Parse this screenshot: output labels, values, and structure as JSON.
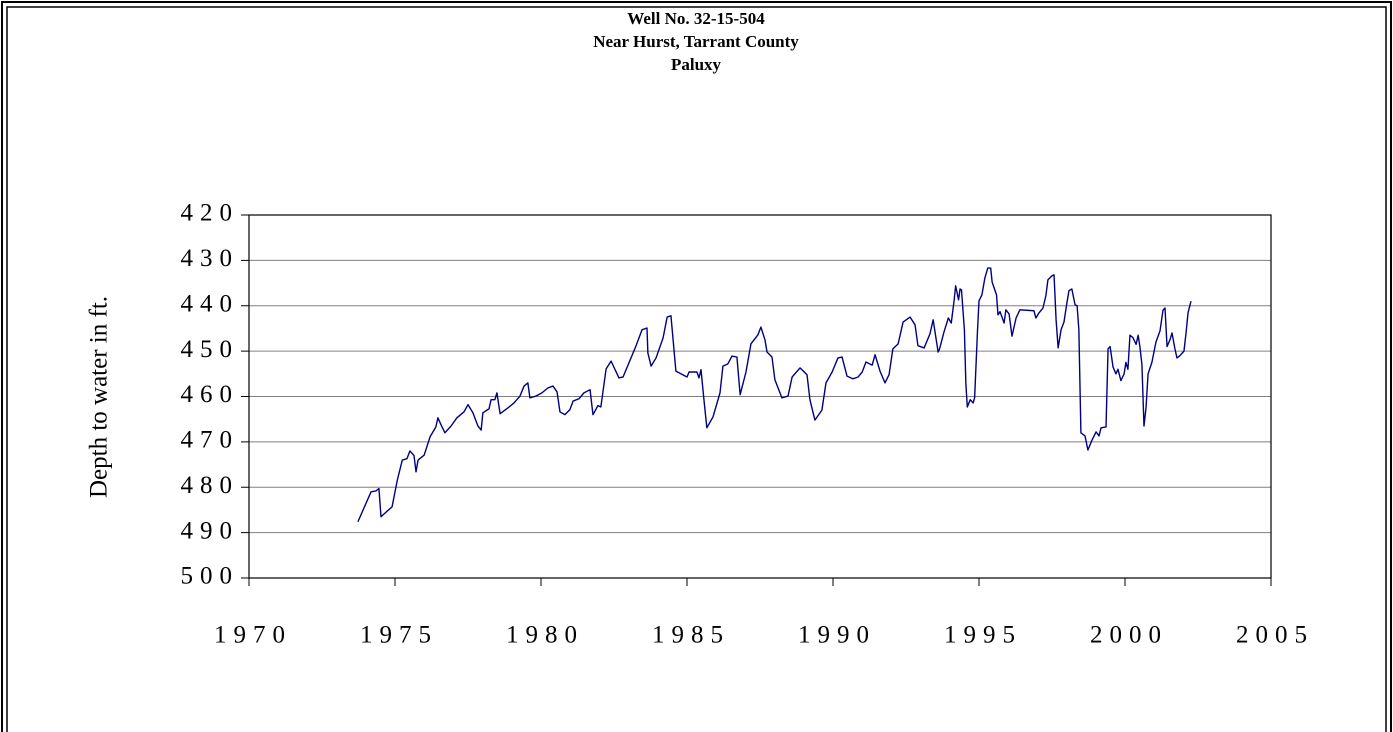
{
  "chart_data": {
    "type": "line",
    "title": [
      "Well No.  32-15-504",
      "Near Hurst, Tarrant County",
      "Paluxy"
    ],
    "ylabel": "Depth to water in ft.",
    "color": "#000080",
    "grid": true,
    "y_inverted": true,
    "xlim": [
      1970,
      2005
    ],
    "xticks": [
      1970,
      1975,
      1980,
      1985,
      1990,
      1995,
      2000,
      2005
    ],
    "ylim": [
      420,
      500
    ],
    "yticks": [
      420,
      430,
      440,
      450,
      460,
      470,
      480,
      490,
      500
    ],
    "x": [
      1973.73,
      1974.18,
      1974.35,
      1974.45,
      1974.52,
      1974.9,
      1975.08,
      1975.25,
      1975.41,
      1975.51,
      1975.65,
      1975.72,
      1975.79,
      1976.0,
      1976.2,
      1976.4,
      1976.47,
      1976.58,
      1976.71,
      1976.92,
      1977.12,
      1977.36,
      1977.5,
      1977.67,
      1977.84,
      1977.95,
      1978.01,
      1978.22,
      1978.29,
      1978.42,
      1978.49,
      1978.6,
      1978.87,
      1979.08,
      1979.28,
      1979.42,
      1979.55,
      1979.62,
      1979.83,
      1980.03,
      1980.24,
      1980.41,
      1980.55,
      1980.65,
      1980.82,
      1980.99,
      1981.1,
      1981.3,
      1981.47,
      1981.68,
      1981.78,
      1981.95,
      1982.05,
      1982.23,
      1982.4,
      1982.67,
      1982.81,
      1983.25,
      1983.46,
      1983.63,
      1983.66,
      1983.77,
      1983.94,
      1984.18,
      1984.32,
      1984.45,
      1984.62,
      1985.0,
      1985.07,
      1985.34,
      1985.41,
      1985.48,
      1985.58,
      1985.68,
      1985.89,
      1986.13,
      1986.23,
      1986.4,
      1986.54,
      1986.71,
      1986.82,
      1987.02,
      1987.19,
      1987.43,
      1987.53,
      1987.67,
      1987.74,
      1987.91,
      1988.01,
      1988.25,
      1988.46,
      1988.6,
      1988.87,
      1989.11,
      1989.21,
      1989.38,
      1989.62,
      1989.76,
      1989.97,
      1990.17,
      1990.31,
      1990.48,
      1990.68,
      1990.86,
      1991.0,
      1991.13,
      1991.34,
      1991.44,
      1991.61,
      1991.78,
      1991.92,
      1992.05,
      1992.23,
      1992.4,
      1992.64,
      1992.81,
      1992.91,
      1993.12,
      1993.32,
      1993.43,
      1993.6,
      1993.65,
      1993.8,
      1993.95,
      1994.05,
      1994.15,
      1994.2,
      1994.3,
      1994.35,
      1994.4,
      1994.5,
      1994.55,
      1994.6,
      1994.7,
      1994.8,
      1994.85,
      1994.95,
      1995.0,
      1995.1,
      1995.2,
      1995.3,
      1995.4,
      1995.45,
      1995.6,
      1995.65,
      1995.72,
      1995.86,
      1995.92,
      1996.03,
      1996.13,
      1996.27,
      1996.4,
      1996.88,
      1996.95,
      1997.05,
      1997.19,
      1997.29,
      1997.36,
      1997.5,
      1997.57,
      1997.64,
      1997.71,
      1997.81,
      1997.91,
      1998.01,
      1998.08,
      1998.18,
      1998.29,
      1998.36,
      1998.42,
      1998.49,
      1998.63,
      1998.73,
      1998.87,
      1999.01,
      1999.11,
      1999.18,
      1999.35,
      1999.42,
      1999.49,
      1999.59,
      1999.69,
      1999.76,
      1999.86,
      1999.97,
      2000.03,
      2000.1,
      2000.17,
      2000.27,
      2000.38,
      2000.45,
      2000.51,
      2000.58,
      2000.65,
      2000.72,
      2000.79,
      2000.92,
      2001.06,
      2001.2,
      2001.3,
      2001.37,
      2001.44,
      2001.54,
      2001.61,
      2001.71,
      2001.78,
      2001.88,
      2002.02,
      2002.09,
      2002.16,
      2002.26
    ],
    "values": [
      487.6,
      481.0,
      480.8,
      480.3,
      486.5,
      484.3,
      478.4,
      474.0,
      473.7,
      472.0,
      473.0,
      476.6,
      474.0,
      472.9,
      468.9,
      466.7,
      464.7,
      466.3,
      468.0,
      466.5,
      464.7,
      463.4,
      461.8,
      463.6,
      466.5,
      467.4,
      463.6,
      462.7,
      460.7,
      460.7,
      459.2,
      463.8,
      462.5,
      461.4,
      459.9,
      457.7,
      457.0,
      460.3,
      459.9,
      459.2,
      458.1,
      457.7,
      459.0,
      463.4,
      464.0,
      462.9,
      461.0,
      460.5,
      459.2,
      458.5,
      464.0,
      462.0,
      462.3,
      453.9,
      452.2,
      455.9,
      455.7,
      448.9,
      445.3,
      444.9,
      450.4,
      453.3,
      451.5,
      447.1,
      442.5,
      442.2,
      454.4,
      455.7,
      454.6,
      454.6,
      455.9,
      454.1,
      460.7,
      466.9,
      464.5,
      459.2,
      453.3,
      452.8,
      451.1,
      451.3,
      459.6,
      454.6,
      448.4,
      446.4,
      444.7,
      447.5,
      450.2,
      451.3,
      456.3,
      460.3,
      459.9,
      455.7,
      453.7,
      455.2,
      460.7,
      465.2,
      463.0,
      457.0,
      454.6,
      451.5,
      451.3,
      455.5,
      456.1,
      455.7,
      454.6,
      452.4,
      453.1,
      450.8,
      454.4,
      457.0,
      455.2,
      449.5,
      448.4,
      443.6,
      442.5,
      444.2,
      448.8,
      449.3,
      446.2,
      443.1,
      450.2,
      449.5,
      445.8,
      442.7,
      443.8,
      438.7,
      435.6,
      438.7,
      436.3,
      436.5,
      445.3,
      457.2,
      462.3,
      460.7,
      461.4,
      460.3,
      445.3,
      438.9,
      437.6,
      433.9,
      431.7,
      431.7,
      434.8,
      437.6,
      442.0,
      441.3,
      443.8,
      440.9,
      441.8,
      446.7,
      442.7,
      440.9,
      441.1,
      442.7,
      441.6,
      440.5,
      437.8,
      434.3,
      433.4,
      433.2,
      443.1,
      449.3,
      445.3,
      443.6,
      439.4,
      436.7,
      436.3,
      439.8,
      440.0,
      445.3,
      468.0,
      468.7,
      471.8,
      469.6,
      467.8,
      468.7,
      466.9,
      466.7,
      449.5,
      449.0,
      453.5,
      455.0,
      454.0,
      456.5,
      455.0,
      452.5,
      454.0,
      446.5,
      447.0,
      448.5,
      446.5,
      449.0,
      453.0,
      466.5,
      462.5,
      455.0,
      452.5,
      448.0,
      445.5,
      441.0,
      440.5,
      449.0,
      447.5,
      446.0,
      449.5,
      451.5,
      451.0,
      450.0,
      446.0,
      441.5,
      439.0
    ]
  }
}
